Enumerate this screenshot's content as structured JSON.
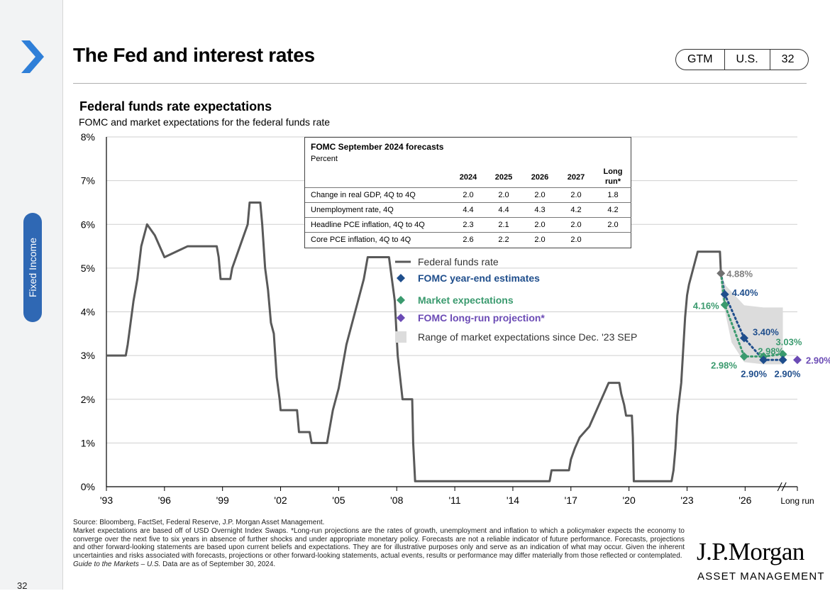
{
  "header": {
    "title": "The Fed and interest rates",
    "tags": [
      "GTM",
      "U.S.",
      "32"
    ],
    "section": "Fixed Income",
    "page_number": "32"
  },
  "chart_data": {
    "type": "line",
    "title": "Federal funds rate expectations",
    "subtitle": "FOMC and market expectations for the federal funds rate",
    "xlabel": "",
    "ylabel": "",
    "ylim": [
      0,
      8
    ],
    "xlim": [
      1993,
      2028.7
    ],
    "x_ticks": [
      "'93",
      "'96",
      "'99",
      "'02",
      "'05",
      "'08",
      "'11",
      "'14",
      "'17",
      "'20",
      "'23",
      "'26",
      "Long run"
    ],
    "y_ticks": [
      "0%",
      "1%",
      "2%",
      "3%",
      "4%",
      "5%",
      "6%",
      "7%",
      "8%"
    ],
    "grid": "horizontal",
    "legend": [
      {
        "label": "Federal funds rate",
        "color": "#595959",
        "marker": "line"
      },
      {
        "label": "FOMC year-end estimates",
        "color": "#1f4e8c",
        "marker": "diamond"
      },
      {
        "label": "Market expectations",
        "color": "#3a9a6e",
        "marker": "diamond"
      },
      {
        "label": "FOMC long-run projection*",
        "color": "#6b4bb5",
        "marker": "diamond"
      },
      {
        "label": "Range of market expectations since Dec. '23 SEP",
        "color": "#dcdcdc",
        "marker": "square"
      }
    ],
    "series": [
      {
        "name": "Federal funds rate",
        "color": "#595959",
        "points": [
          [
            1993.0,
            3.0
          ],
          [
            1994.0,
            3.0
          ],
          [
            1994.1,
            3.25
          ],
          [
            1994.25,
            3.75
          ],
          [
            1994.4,
            4.25
          ],
          [
            1994.6,
            4.75
          ],
          [
            1994.8,
            5.5
          ],
          [
            1995.1,
            6.0
          ],
          [
            1995.5,
            5.75
          ],
          [
            1996.0,
            5.25
          ],
          [
            1997.2,
            5.5
          ],
          [
            1998.7,
            5.5
          ],
          [
            1998.8,
            5.25
          ],
          [
            1998.9,
            4.75
          ],
          [
            1999.4,
            4.75
          ],
          [
            1999.5,
            5.0
          ],
          [
            1999.7,
            5.25
          ],
          [
            1999.9,
            5.5
          ],
          [
            2000.1,
            5.75
          ],
          [
            2000.3,
            6.0
          ],
          [
            2000.4,
            6.5
          ],
          [
            2000.95,
            6.5
          ],
          [
            2001.05,
            6.0
          ],
          [
            2001.2,
            5.0
          ],
          [
            2001.35,
            4.5
          ],
          [
            2001.5,
            3.75
          ],
          [
            2001.65,
            3.5
          ],
          [
            2001.8,
            2.5
          ],
          [
            2001.95,
            2.0
          ],
          [
            2002.0,
            1.75
          ],
          [
            2002.85,
            1.75
          ],
          [
            2002.95,
            1.25
          ],
          [
            2003.5,
            1.25
          ],
          [
            2003.6,
            1.0
          ],
          [
            2004.4,
            1.0
          ],
          [
            2004.5,
            1.25
          ],
          [
            2004.7,
            1.75
          ],
          [
            2005.0,
            2.25
          ],
          [
            2005.2,
            2.75
          ],
          [
            2005.4,
            3.25
          ],
          [
            2005.7,
            3.75
          ],
          [
            2006.0,
            4.25
          ],
          [
            2006.3,
            4.75
          ],
          [
            2006.5,
            5.25
          ],
          [
            2007.6,
            5.25
          ],
          [
            2007.75,
            4.75
          ],
          [
            2007.9,
            4.25
          ],
          [
            2008.05,
            3.0
          ],
          [
            2008.3,
            2.0
          ],
          [
            2008.8,
            2.0
          ],
          [
            2008.85,
            1.0
          ],
          [
            2008.95,
            0.125
          ],
          [
            2015.9,
            0.125
          ],
          [
            2016.0,
            0.375
          ],
          [
            2016.9,
            0.375
          ],
          [
            2017.0,
            0.625
          ],
          [
            2017.2,
            0.875
          ],
          [
            2017.45,
            1.125
          ],
          [
            2017.95,
            1.375
          ],
          [
            2018.2,
            1.625
          ],
          [
            2018.45,
            1.875
          ],
          [
            2018.7,
            2.125
          ],
          [
            2018.95,
            2.375
          ],
          [
            2019.5,
            2.375
          ],
          [
            2019.6,
            2.125
          ],
          [
            2019.75,
            1.875
          ],
          [
            2019.85,
            1.625
          ],
          [
            2020.15,
            1.625
          ],
          [
            2020.2,
            1.125
          ],
          [
            2020.25,
            0.125
          ],
          [
            2022.2,
            0.125
          ],
          [
            2022.3,
            0.375
          ],
          [
            2022.4,
            0.875
          ],
          [
            2022.5,
            1.625
          ],
          [
            2022.7,
            2.375
          ],
          [
            2022.8,
            3.125
          ],
          [
            2022.9,
            3.875
          ],
          [
            2023.0,
            4.375
          ],
          [
            2023.1,
            4.625
          ],
          [
            2023.25,
            4.875
          ],
          [
            2023.4,
            5.125
          ],
          [
            2023.55,
            5.375
          ],
          [
            2024.7,
            5.375
          ],
          [
            2024.75,
            4.88
          ]
        ]
      },
      {
        "name": "FOMC year-end estimates",
        "color": "#1f4e8c",
        "points": [
          [
            2024.75,
            4.88
          ],
          [
            2024.95,
            4.4
          ],
          [
            2025.95,
            3.4
          ],
          [
            2026.95,
            2.9
          ],
          [
            2027.95,
            2.9
          ]
        ]
      },
      {
        "name": "Market expectations",
        "color": "#3a9a6e",
        "points": [
          [
            2024.75,
            4.88
          ],
          [
            2024.95,
            4.16
          ],
          [
            2025.95,
            2.98
          ],
          [
            2026.95,
            2.98
          ],
          [
            2027.95,
            3.03
          ]
        ]
      },
      {
        "name": "FOMC long-run projection*",
        "color": "#6b4bb5",
        "points": [
          [
            2028.7,
            2.9
          ]
        ]
      }
    ],
    "range_band": {
      "upper": [
        [
          2024.75,
          4.88
        ],
        [
          2025.0,
          4.6
        ],
        [
          2025.95,
          4.15
        ],
        [
          2026.95,
          4.1
        ],
        [
          2027.95,
          4.1
        ]
      ],
      "lower": [
        [
          2027.95,
          2.8
        ],
        [
          2026.95,
          2.8
        ],
        [
          2025.95,
          2.85
        ],
        [
          2025.3,
          3.3
        ],
        [
          2024.75,
          4.45
        ]
      ]
    },
    "annotations": [
      {
        "text": "4.88%",
        "x": 2024.75,
        "y": 4.88,
        "color": "#808080"
      },
      {
        "text": "4.40%",
        "x": 2024.95,
        "y": 4.4,
        "color": "#1f4e8c"
      },
      {
        "text": "4.16%",
        "x": 2024.95,
        "y": 4.16,
        "color": "#3a9a6e"
      },
      {
        "text": "3.40%",
        "x": 2025.95,
        "y": 3.4,
        "color": "#1f4e8c"
      },
      {
        "text": "2.98%",
        "x": 2025.95,
        "y": 2.98,
        "color": "#3a9a6e"
      },
      {
        "text": "2.98%",
        "x": 2026.95,
        "y": 2.98,
        "color": "#3a9a6e"
      },
      {
        "text": "3.03%",
        "x": 2027.95,
        "y": 3.03,
        "color": "#3a9a6e"
      },
      {
        "text": "2.90%",
        "x": 2026.95,
        "y": 2.9,
        "color": "#1f4e8c"
      },
      {
        "text": "2.90%",
        "x": 2027.95,
        "y": 2.9,
        "color": "#1f4e8c"
      },
      {
        "text": "2.90%",
        "x": 2028.7,
        "y": 2.9,
        "color": "#6b4bb5"
      }
    ]
  },
  "forecast_table": {
    "title": "FOMC September 2024 forecasts",
    "subtitle": "Percent",
    "columns": [
      "2024",
      "2025",
      "2026",
      "2027",
      "Long run*"
    ],
    "rows": [
      {
        "label": "Change in real GDP, 4Q to 4Q",
        "values": [
          "2.0",
          "2.0",
          "2.0",
          "2.0",
          "1.8"
        ]
      },
      {
        "label": "Unemployment rate, 4Q",
        "values": [
          "4.4",
          "4.4",
          "4.3",
          "4.2",
          "4.2"
        ]
      },
      {
        "label": "Headline PCE inflation, 4Q to 4Q",
        "values": [
          "2.3",
          "2.1",
          "2.0",
          "2.0",
          "2.0"
        ]
      },
      {
        "label": "Core PCE inflation, 4Q to 4Q",
        "values": [
          "2.6",
          "2.2",
          "2.0",
          "2.0",
          ""
        ]
      }
    ]
  },
  "footer": {
    "source": "Source: Bloomberg, FactSet, Federal Reserve, J.P. Morgan Asset Management.",
    "notes": "Market expectations are based off of USD Overnight Index Swaps. *Long-run projections are the rates of growth, unemployment and inflation to which a policymaker expects the economy to converge over the next five to six years in absence of further shocks and under appropriate monetary policy. Forecasts are not a reliable indicator of future performance. Forecasts, projections and other forward-looking statements are based upon current beliefs and expectations. They are for illustrative purposes only and serve as an indication of what may occur. Given the inherent uncertainties and risks associated with forecasts, projections or other forward-looking statements, actual events, results or performance may differ materially from those reflected or contemplated.",
    "guide_title": "Guide to the Markets – U.S.",
    "guide_rest": " Data are as of September 30, 2024.",
    "logo": "J.P.Morgan",
    "logo_sub": "ASSET MANAGEMENT"
  }
}
